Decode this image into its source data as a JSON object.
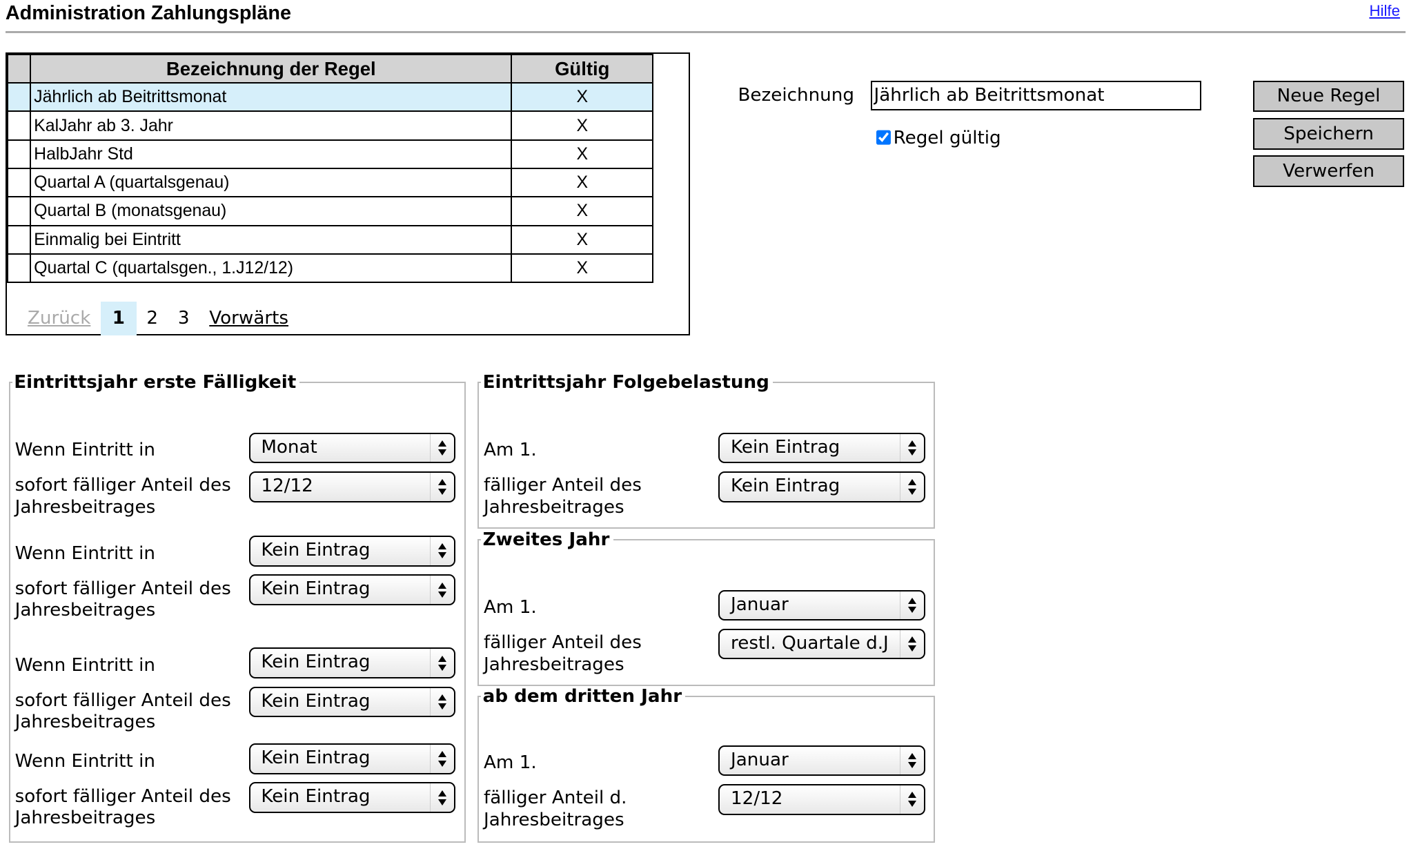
{
  "header": {
    "title": "Administration Zahlungspläne",
    "help_link": "Hilfe"
  },
  "table": {
    "columns": [
      "Bezeichnung der Regel",
      "Gültig"
    ],
    "rows": [
      {
        "name": "Jährlich ab Beitrittsmonat",
        "valid": "X",
        "selected": true
      },
      {
        "name": "KalJahr ab 3. Jahr",
        "valid": "X"
      },
      {
        "name": "HalbJahr Std",
        "valid": "X"
      },
      {
        "name": "Quartal A (quartalsgenau)",
        "valid": "X"
      },
      {
        "name": "Quartal B (monatsgenau)",
        "valid": "X"
      },
      {
        "name": "Einmalig bei Eintritt",
        "valid": "X"
      },
      {
        "name": "Quartal C (quartalsgen., 1.J12/12)",
        "valid": "X"
      }
    ],
    "pager": {
      "prev": "Zurück",
      "pages": [
        "1",
        "2",
        "3"
      ],
      "current": "1",
      "next": "Vorwärts"
    }
  },
  "form": {
    "label": "Bezeichnung",
    "value": "Jährlich ab Beitrittsmonat",
    "checkbox_label": "Regel gültig",
    "checked": true
  },
  "buttons": {
    "new": "Neue Regel",
    "save": "Speichern",
    "discard": "Verwerfen"
  },
  "first": {
    "legend": "Eintrittsjahr erste Fälligkeit",
    "label_when": "Wenn Eintritt in",
    "label_share": "sofort fälliger Anteil des Jahresbeitrages",
    "groups": [
      {
        "when": "Monat",
        "share": "12/12"
      },
      {
        "when": "Kein Eintrag",
        "share": "Kein Eintrag"
      },
      {
        "when": "Kein Eintrag",
        "share": "Kein Eintrag"
      },
      {
        "when": "Kein Eintrag",
        "share": "Kein Eintrag"
      }
    ]
  },
  "follow": {
    "legend": "Eintrittsjahr Folgebelastung",
    "label_on": "Am 1.",
    "label_share": "fälliger Anteil des Jahresbeitrages",
    "on": "Kein Eintrag",
    "share": "Kein Eintrag"
  },
  "second": {
    "legend": "Zweites Jahr",
    "label_on": "Am 1.",
    "label_share": "fälliger Anteil des Jahresbeitrages",
    "on": "Januar",
    "share": "restl. Quartale d.J"
  },
  "third": {
    "legend": "ab dem dritten Jahr",
    "label_on": "Am 1.",
    "label_share": "fälliger Anteil d. Jahresbeitrages",
    "on": "Januar",
    "share": "12/12"
  }
}
